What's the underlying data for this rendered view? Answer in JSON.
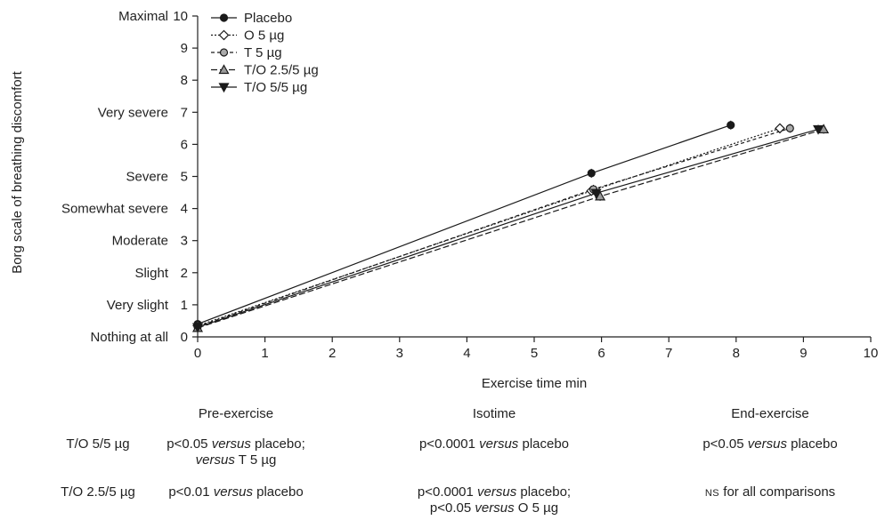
{
  "chart_data": {
    "type": "line",
    "xlabel": "Exercise time min",
    "ylabel": "Borg scale of breathing discomfort",
    "xlim": [
      0,
      10
    ],
    "ylim": [
      0,
      10
    ],
    "x_ticks": [
      0,
      1,
      2,
      3,
      4,
      5,
      6,
      7,
      8,
      9,
      10
    ],
    "y_ticks": [
      0,
      1,
      2,
      3,
      4,
      5,
      6,
      7,
      8,
      9,
      10
    ],
    "y_tick_labels": [
      "0",
      "1",
      "2",
      "3",
      "4",
      "5",
      "6",
      "7",
      "8",
      "9",
      "10"
    ],
    "y_category_labels": [
      {
        "y": 0,
        "label": "Nothing at all"
      },
      {
        "y": 1,
        "label": "Very slight"
      },
      {
        "y": 2,
        "label": "Slight"
      },
      {
        "y": 3,
        "label": "Moderate"
      },
      {
        "y": 4,
        "label": "Somewhat severe"
      },
      {
        "y": 5,
        "label": "Severe"
      },
      {
        "y": 7,
        "label": "Very severe"
      },
      {
        "y": 10,
        "label": "Maximal"
      }
    ],
    "legend_position": "top-left",
    "grid": false,
    "series": [
      {
        "name": "Placebo",
        "marker": "circle",
        "fill": "#1a1a1a",
        "stroke": "#1a1a1a",
        "dash": "",
        "points": [
          {
            "x": 0.0,
            "y": 0.4
          },
          {
            "x": 5.85,
            "y": 5.1
          },
          {
            "x": 7.92,
            "y": 6.6
          }
        ]
      },
      {
        "name": "O 5 µg",
        "marker": "diamond",
        "fill": "#ffffff",
        "stroke": "#1a1a1a",
        "dash": "2,2",
        "points": [
          {
            "x": 0.0,
            "y": 0.35
          },
          {
            "x": 5.85,
            "y": 4.55
          },
          {
            "x": 8.65,
            "y": 6.5
          }
        ]
      },
      {
        "name": "T 5 µg",
        "marker": "circle",
        "fill": "#aaaaaa",
        "stroke": "#1a1a1a",
        "dash": "4,3",
        "points": [
          {
            "x": 0.0,
            "y": 0.32
          },
          {
            "x": 5.88,
            "y": 4.6
          },
          {
            "x": 8.8,
            "y": 6.5
          }
        ]
      },
      {
        "name": "T/O 2.5/5 µg",
        "marker": "triangle-up",
        "fill": "#9a9a9a",
        "stroke": "#1a1a1a",
        "dash": "7,3",
        "points": [
          {
            "x": 0.0,
            "y": 0.28
          },
          {
            "x": 5.98,
            "y": 4.38
          },
          {
            "x": 9.3,
            "y": 6.47
          }
        ]
      },
      {
        "name": "T/O 5/5 µg",
        "marker": "triangle-down",
        "fill": "#1a1a1a",
        "stroke": "#1a1a1a",
        "dash": "",
        "points": [
          {
            "x": 0.0,
            "y": 0.3
          },
          {
            "x": 5.92,
            "y": 4.48
          },
          {
            "x": 9.22,
            "y": 6.47
          }
        ]
      }
    ]
  },
  "stats_table": {
    "headers": [
      "Pre-exercise",
      "Isotime",
      "End-exercise"
    ],
    "rows": [
      {
        "label": "T/O 5/5 µg",
        "pre_line1_prefix": "p<0.05 ",
        "pre_line1_italic": "versus",
        "pre_line1_suffix": " placebo;",
        "pre_line2_italic": "versus",
        "pre_line2_suffix": " T 5 µg",
        "iso_prefix": "p<0.0001 ",
        "iso_italic": "versus",
        "iso_suffix": " placebo",
        "end_prefix": "p<0.05 ",
        "end_italic": "versus",
        "end_suffix": " placebo"
      },
      {
        "label": "T/O 2.5/5 µg",
        "pre_prefix": "p<0.01 ",
        "pre_italic": "versus",
        "pre_suffix": " placebo",
        "iso_line1_prefix": "p<0.0001 ",
        "iso_line1_italic": "versus",
        "iso_line1_suffix": " placebo;",
        "iso_line2_prefix": "p<0.05 ",
        "iso_line2_italic": "versus",
        "iso_line2_suffix": " O 5 µg",
        "end_smallcaps": "NS",
        "end_suffix": " for all comparisons"
      }
    ]
  }
}
